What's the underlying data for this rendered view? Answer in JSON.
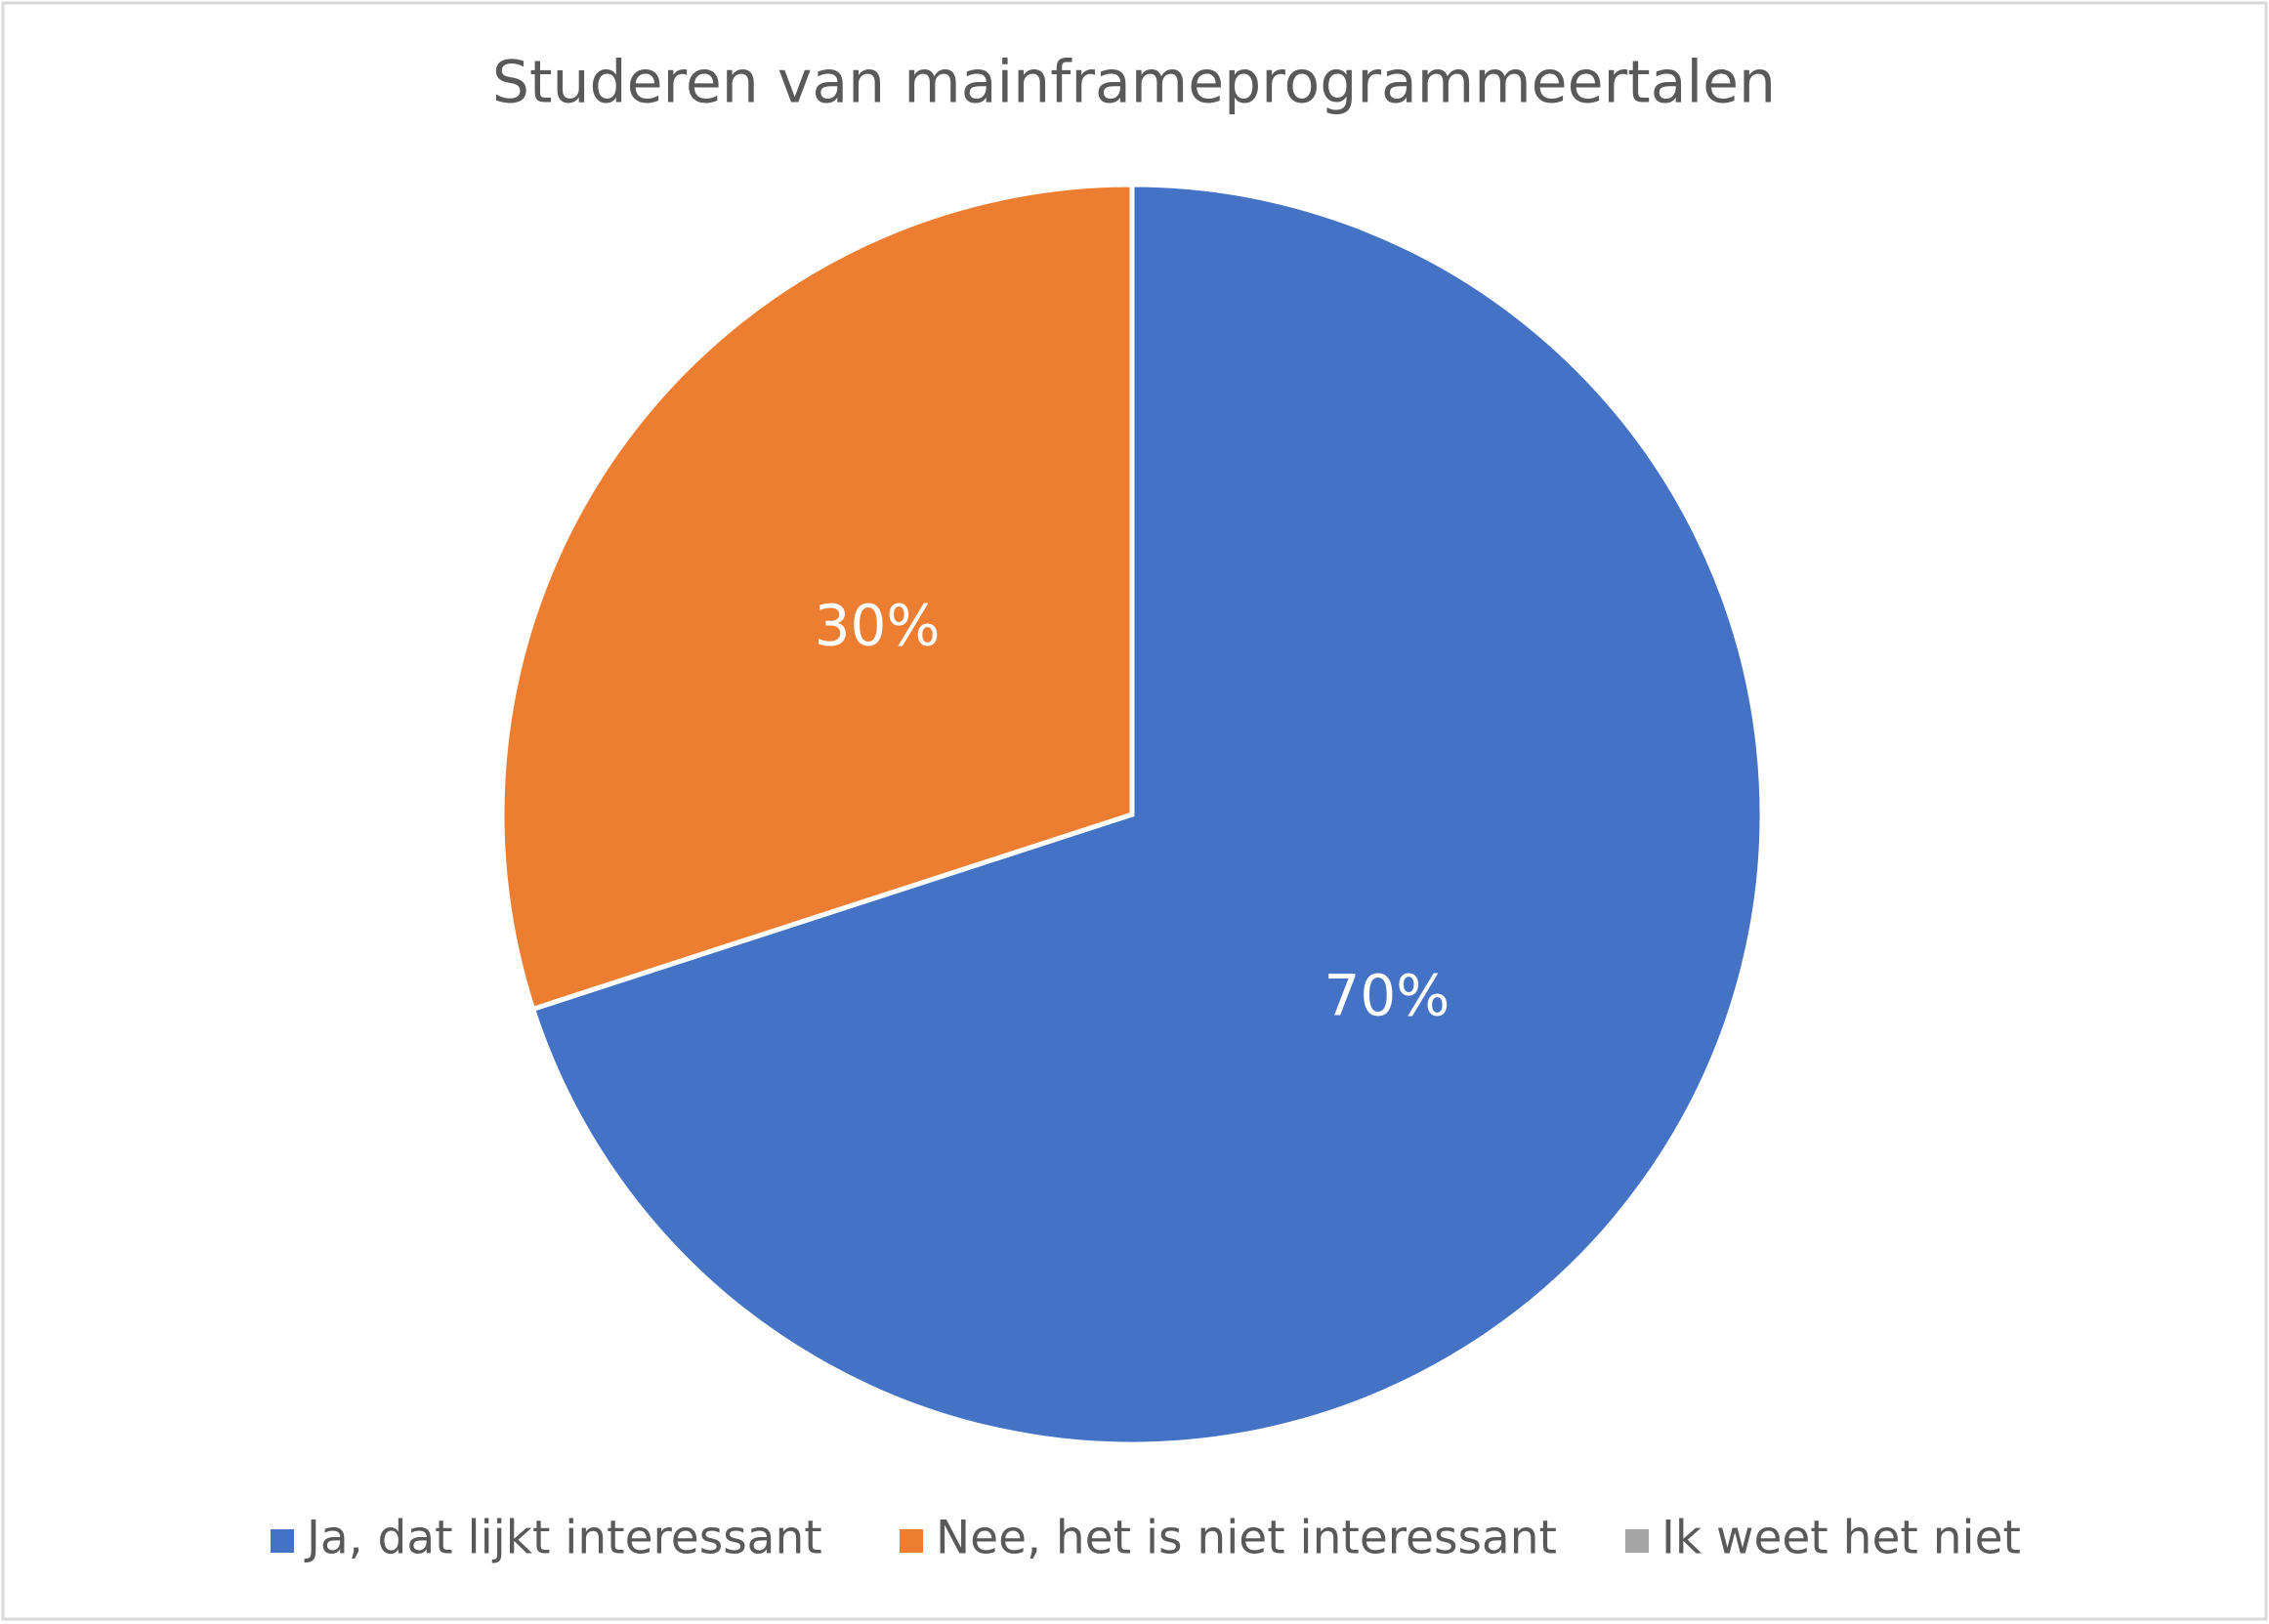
{
  "chart_data": {
    "type": "pie",
    "title": "Studeren van mainframeprogrammeertalen",
    "categories": [
      "Ja, dat lijkt interessant",
      "Nee, het is niet interessant",
      "Ik weet het niet"
    ],
    "values": [
      70,
      30,
      0
    ],
    "value_labels": [
      "70%",
      "30%",
      null
    ],
    "colors": [
      "#4472c4",
      "#ed7d31",
      "#a5a5a5"
    ],
    "legend": "bottom"
  }
}
